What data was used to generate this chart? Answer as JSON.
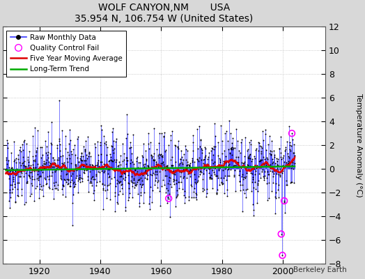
{
  "title": "WOLF CANYON,NM       USA",
  "subtitle": "35.954 N, 106.754 W (United States)",
  "ylabel": "Temperature Anomaly (°C)",
  "xlim": [
    1908,
    2014
  ],
  "ylim": [
    -8,
    12
  ],
  "yticks": [
    -8,
    -6,
    -4,
    -2,
    0,
    2,
    4,
    6,
    8,
    10,
    12
  ],
  "xticks": [
    1920,
    1940,
    1960,
    1980,
    2000
  ],
  "plot_bg": "#ffffff",
  "fig_bg": "#d8d8d8",
  "line_color": "#3333ff",
  "marker_color": "#000000",
  "ma_color": "#dd0000",
  "trend_color": "#00aa00",
  "qc_color": "#ff00ff",
  "seed": 42,
  "n_months": 1140,
  "start_year": 1909,
  "qc_points": [
    [
      1962.5,
      -2.5
    ],
    [
      1999.5,
      -5.5
    ],
    [
      1999.9,
      -7.3
    ],
    [
      2003.0,
      3.0
    ],
    [
      2000.5,
      -2.7
    ]
  ]
}
